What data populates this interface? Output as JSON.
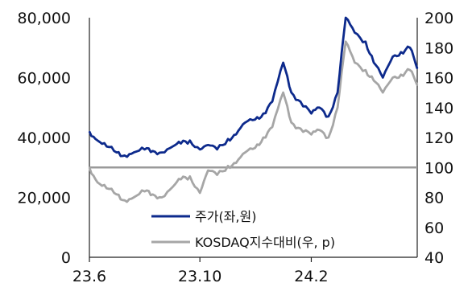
{
  "chart_data": {
    "type": "line",
    "title": "",
    "x_ticks": [
      "23.6",
      "23.10",
      "24.2"
    ],
    "y_left": {
      "range": [
        0,
        80000
      ],
      "ticks": [
        "0",
        "20,000",
        "40,000",
        "60,000",
        "80,000"
      ]
    },
    "y_right": {
      "range": [
        40,
        200
      ],
      "ticks": [
        "40",
        "60",
        "80",
        "100",
        "120",
        "140",
        "160",
        "180",
        "200"
      ]
    },
    "reference_line": {
      "axis": "right",
      "value": 100
    },
    "legend_placement": "bottom-center",
    "grid": false,
    "series": [
      {
        "name": "주가(좌,원)",
        "axis": "left",
        "color": "#0d2a8c",
        "x": [
          "2023-06-01",
          "2023-06-10",
          "2023-06-20",
          "2023-07-01",
          "2023-07-10",
          "2023-07-20",
          "2023-08-01",
          "2023-08-10",
          "2023-08-20",
          "2023-09-01",
          "2023-09-10",
          "2023-09-20",
          "2023-10-01",
          "2023-10-10",
          "2023-10-20",
          "2023-11-01",
          "2023-11-10",
          "2023-11-20",
          "2023-12-01",
          "2023-12-10",
          "2023-12-20",
          "2024-01-01",
          "2024-01-10",
          "2024-01-20",
          "2024-02-01",
          "2024-02-10",
          "2024-02-20",
          "2024-03-01",
          "2024-03-10",
          "2024-03-20",
          "2024-04-01",
          "2024-04-10",
          "2024-04-20",
          "2024-05-01",
          "2024-05-10",
          "2024-05-20",
          "2024-05-28"
        ],
        "values": [
          42000,
          39000,
          37000,
          35000,
          34000,
          35000,
          36000,
          35500,
          35000,
          37000,
          38000,
          39000,
          36000,
          37500,
          36000,
          39500,
          41000,
          45000,
          46000,
          48000,
          52000,
          65000,
          55000,
          52000,
          48000,
          50000,
          47000,
          55000,
          80000,
          75000,
          72000,
          65000,
          60000,
          67000,
          68500,
          70000,
          63000
        ]
      },
      {
        "name": "KOSDAQ지수대비(우, p)",
        "axis": "right",
        "color": "#a6a6a6",
        "x": [
          "2023-06-01",
          "2023-06-10",
          "2023-06-20",
          "2023-07-01",
          "2023-07-10",
          "2023-07-20",
          "2023-08-01",
          "2023-08-10",
          "2023-08-20",
          "2023-09-01",
          "2023-09-10",
          "2023-09-20",
          "2023-10-01",
          "2023-10-10",
          "2023-10-20",
          "2023-11-01",
          "2023-11-10",
          "2023-11-20",
          "2023-12-01",
          "2023-12-10",
          "2023-12-20",
          "2024-01-01",
          "2024-01-10",
          "2024-01-20",
          "2024-02-01",
          "2024-02-10",
          "2024-02-20",
          "2024-03-01",
          "2024-03-10",
          "2024-03-20",
          "2024-04-01",
          "2024-04-10",
          "2024-04-20",
          "2024-05-01",
          "2024-05-10",
          "2024-05-20",
          "2024-05-28"
        ],
        "values": [
          100,
          90,
          86,
          82,
          78,
          80,
          84,
          82,
          80,
          87,
          92,
          94,
          83,
          98,
          95,
          101,
          103,
          110,
          113,
          120,
          127,
          150,
          130,
          126,
          122,
          125,
          120,
          140,
          184,
          170,
          165,
          158,
          150,
          160,
          162,
          165,
          155
        ]
      }
    ]
  }
}
